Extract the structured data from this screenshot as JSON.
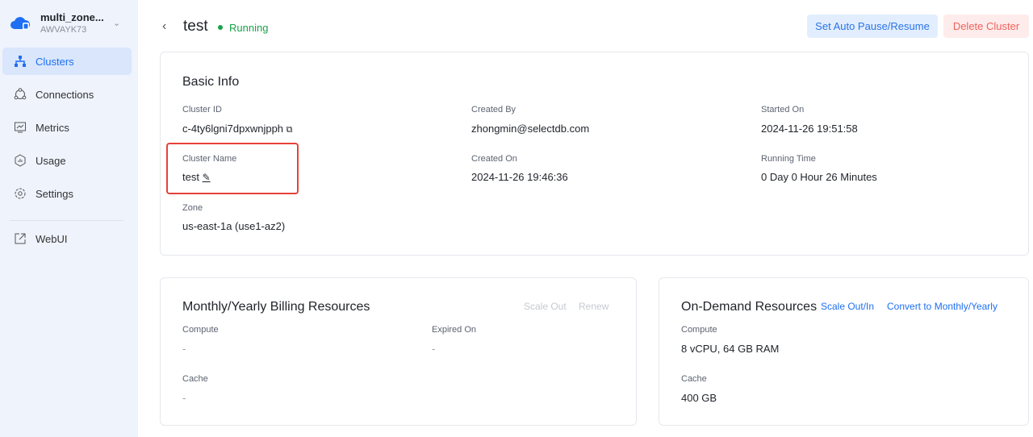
{
  "sidebar": {
    "org_name": "multi_zone...",
    "org_id": "AWVAYK73",
    "items": [
      {
        "label": "Clusters",
        "icon": "clusters-icon"
      },
      {
        "label": "Connections",
        "icon": "connections-icon"
      },
      {
        "label": "Metrics",
        "icon": "metrics-icon"
      },
      {
        "label": "Usage",
        "icon": "usage-icon"
      },
      {
        "label": "Settings",
        "icon": "gear-icon"
      }
    ],
    "webui": "WebUI"
  },
  "header": {
    "title": "test",
    "status": "Running",
    "auto_pause": "Set Auto Pause/Resume",
    "delete": "Delete Cluster"
  },
  "basic": {
    "title": "Basic Info",
    "cluster_id_label": "Cluster ID",
    "cluster_id": "c-4ty6lgni7dpxwnjpph",
    "created_by_label": "Created By",
    "created_by": "zhongmin@selectdb.com",
    "started_on_label": "Started On",
    "started_on": "2024-11-26 19:51:58",
    "cluster_name_label": "Cluster Name",
    "cluster_name": "test",
    "created_on_label": "Created On",
    "created_on": "2024-11-26 19:46:36",
    "running_time_label": "Running Time",
    "running_time": "0 Day 0 Hour 26 Minutes",
    "zone_label": "Zone",
    "zone": "us-east-1a (use1-az2)"
  },
  "monthly": {
    "title": "Monthly/Yearly Billing Resources",
    "scale_out": "Scale Out",
    "renew": "Renew",
    "compute_label": "Compute",
    "compute": "-",
    "expired_label": "Expired On",
    "expired": "-",
    "cache_label": "Cache",
    "cache": "-"
  },
  "ondemand": {
    "title": "On-Demand Resources",
    "scale": "Scale Out/In",
    "convert": "Convert to Monthly/Yearly",
    "compute_label": "Compute",
    "compute": "8 vCPU, 64 GB RAM",
    "cache_label": "Cache",
    "cache": "400 GB"
  },
  "colors": {
    "accent": "#1f6ff2",
    "running": "#18a34a",
    "danger": "#f0625c"
  }
}
